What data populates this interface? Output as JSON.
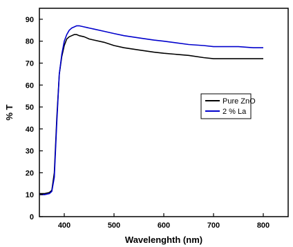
{
  "chart_data": {
    "type": "line",
    "title": "",
    "xlabel": "Wavelenghth (nm)",
    "ylabel": "% T",
    "xlim": [
      350,
      850
    ],
    "ylim": [
      0,
      95
    ],
    "xticks": [
      400,
      500,
      600,
      700,
      800
    ],
    "yticks": [
      0,
      10,
      20,
      30,
      40,
      50,
      60,
      70,
      80,
      90
    ],
    "grid": false,
    "legend_position": "right",
    "series": [
      {
        "name": "Pure ZnO",
        "color": "#000000",
        "x": [
          350,
          360,
          370,
          375,
          380,
          385,
          390,
          395,
          400,
          405,
          410,
          415,
          420,
          425,
          430,
          440,
          450,
          460,
          480,
          500,
          520,
          550,
          580,
          600,
          650,
          680,
          700,
          720,
          750,
          780,
          800
        ],
        "y": [
          10.5,
          10.5,
          11,
          12,
          20,
          45,
          65,
          73,
          78,
          81,
          82,
          82.5,
          83,
          83,
          82.5,
          82,
          81,
          80.5,
          79.5,
          78,
          77,
          76,
          75,
          74.5,
          73.5,
          72.5,
          72,
          72,
          72,
          72,
          72
        ]
      },
      {
        "name": "2 % La",
        "color": "#0000cc",
        "x": [
          350,
          360,
          370,
          375,
          380,
          385,
          390,
          395,
          400,
          405,
          410,
          415,
          420,
          425,
          430,
          440,
          450,
          460,
          480,
          500,
          520,
          550,
          580,
          600,
          650,
          680,
          700,
          720,
          750,
          780,
          800
        ],
        "y": [
          10,
          10,
          10.5,
          11.5,
          18,
          43,
          65,
          74,
          80,
          83,
          85,
          86,
          86.5,
          87,
          87,
          86.5,
          86,
          85.5,
          84.5,
          83.5,
          82.5,
          81.5,
          80.5,
          80,
          78.5,
          78,
          77.5,
          77.5,
          77.5,
          77,
          77
        ]
      }
    ]
  }
}
